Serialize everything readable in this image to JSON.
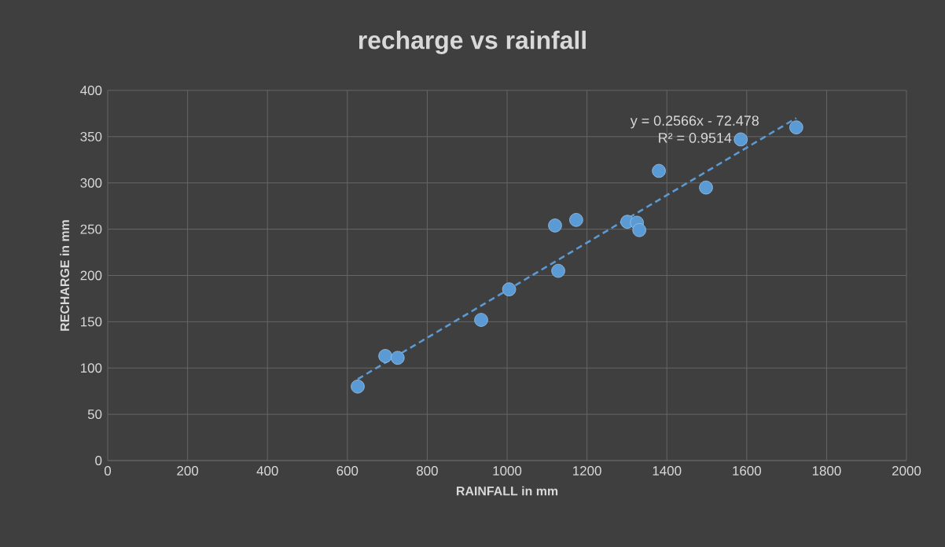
{
  "chart_data": {
    "type": "scatter",
    "title": "recharge vs rainfall",
    "xlabel": "RAINFALL in mm",
    "ylabel": "RECHARGE in mm",
    "xlim": [
      0,
      2000
    ],
    "ylim": [
      0,
      400
    ],
    "xticks": [
      0,
      200,
      400,
      600,
      800,
      1000,
      1200,
      1400,
      1600,
      1800,
      2000
    ],
    "yticks": [
      0,
      50,
      100,
      150,
      200,
      250,
      300,
      350,
      400
    ],
    "grid": true,
    "marker": "circle",
    "annotations": [
      "y = 0.2566x - 72.478",
      "R² = 0.9514"
    ],
    "series": [
      {
        "color": "#5b9bd5",
        "x": [
          626,
          695,
          726,
          935,
          1005,
          1120,
          1128,
          1173,
          1301,
          1325,
          1331,
          1380,
          1498,
          1585,
          1724
        ],
        "values": [
          80,
          113,
          111,
          152,
          185,
          254,
          205,
          260,
          258,
          257,
          249,
          313,
          295,
          347,
          360
        ]
      },
      {
        "type": "line",
        "color": "#5b9bd5",
        "line_style": "dashed",
        "marker": "none",
        "x": [
          626,
          1724
        ],
        "values": [
          88,
          370
        ]
      }
    ]
  }
}
